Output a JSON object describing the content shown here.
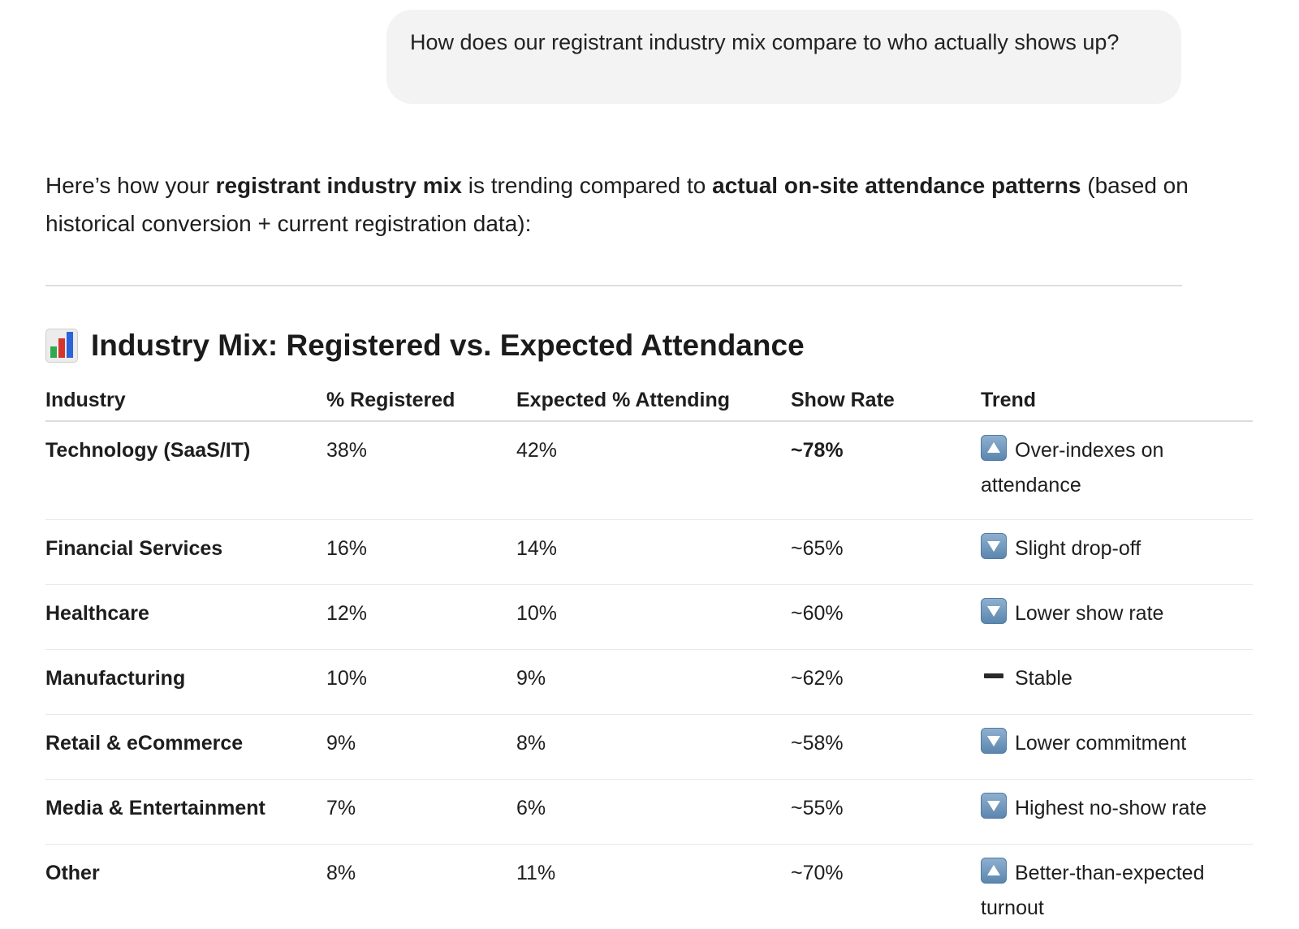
{
  "user_message": "How does our registrant industry mix compare to who actually shows up?",
  "intro": {
    "p1": "Here’s how your ",
    "b1": "registrant industry mix",
    "p2": " is trending compared to ",
    "b2": "actual on-site attendance patterns",
    "p3": " (based on historical conversion + current registration data):"
  },
  "section": {
    "icon": "bar-chart-icon",
    "title": "Industry Mix: Registered vs. Expected Attendance"
  },
  "table": {
    "headers": [
      "Industry",
      "% Registered",
      "Expected % Attending",
      "Show Rate",
      "Trend"
    ],
    "rows": [
      {
        "industry": "Technology (SaaS/IT)",
        "registered": "38%",
        "attending": "42%",
        "show_rate": "~78%",
        "trend_icon": "up-arrow-icon",
        "trend": "Over-indexes on attendance"
      },
      {
        "industry": "Financial Services",
        "registered": "16%",
        "attending": "14%",
        "show_rate": "~65%",
        "trend_icon": "down-arrow-icon",
        "trend": "Slight drop-off"
      },
      {
        "industry": "Healthcare",
        "registered": "12%",
        "attending": "10%",
        "show_rate": "~60%",
        "trend_icon": "down-arrow-icon",
        "trend": "Lower show rate"
      },
      {
        "industry": "Manufacturing",
        "registered": "10%",
        "attending": "9%",
        "show_rate": "~62%",
        "trend_icon": "dash-icon",
        "trend": "Stable"
      },
      {
        "industry": "Retail & eCommerce",
        "registered": "9%",
        "attending": "8%",
        "show_rate": "~58%",
        "trend_icon": "down-arrow-icon",
        "trend": "Lower commitment"
      },
      {
        "industry": "Media & Entertainment",
        "registered": "7%",
        "attending": "6%",
        "show_rate": "~55%",
        "trend_icon": "down-arrow-icon",
        "trend": "Highest no-show rate"
      },
      {
        "industry": "Other",
        "registered": "8%",
        "attending": "11%",
        "show_rate": "~70%",
        "trend_icon": "up-arrow-icon",
        "trend": "Better-than-expected turnout"
      }
    ]
  }
}
